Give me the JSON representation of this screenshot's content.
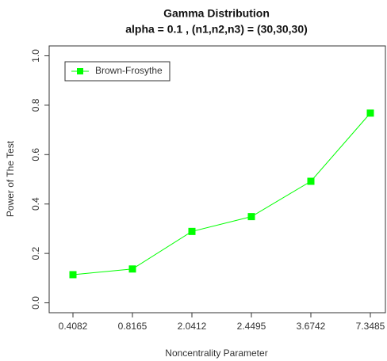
{
  "chart_data": {
    "type": "line",
    "title": "Gamma Distribution",
    "subtitle": "alpha = 0.1 , (n1,n2,n3) = (30,30,30)",
    "x_label": "Noncentrality Parameter",
    "y_label": "Power of The Test",
    "categories": [
      "0.4082",
      "0.8165",
      "2.0412",
      "2.4495",
      "3.6742",
      "7.3485"
    ],
    "series": [
      {
        "name": "Brown-Frosythe",
        "color": "#00ff00",
        "values": [
          0.114,
          0.137,
          0.289,
          0.349,
          0.492,
          0.768
        ]
      }
    ],
    "ylim": [
      -0.04,
      1.04
    ],
    "yticks": [
      {
        "value": 0,
        "label": "0.0"
      },
      0.2,
      0.4,
      0.6,
      0.8,
      {
        "value": 1,
        "label": "1.0"
      }
    ],
    "grid": false,
    "legend": "top-left"
  }
}
